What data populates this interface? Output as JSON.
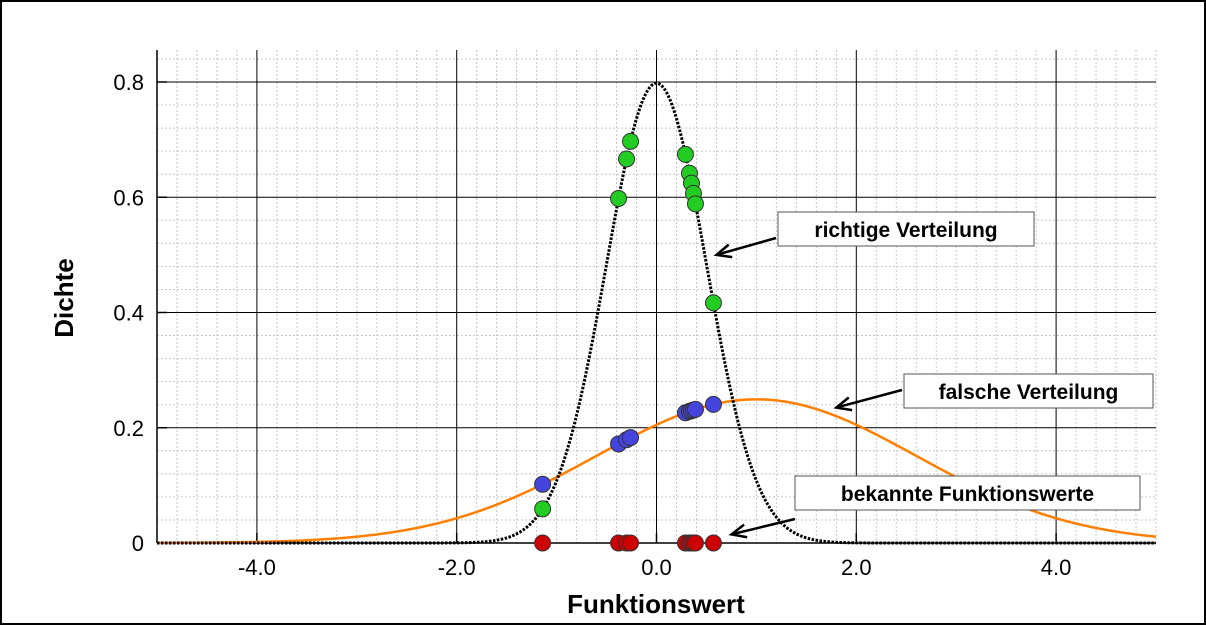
{
  "chart_data": {
    "type": "line",
    "title": "",
    "xlabel": "Funktionswert",
    "ylabel": "Dichte",
    "xlim": [
      -5,
      5
    ],
    "ylim": [
      0,
      0.8
    ],
    "x_ticks": [
      -4,
      -2,
      0,
      2,
      4
    ],
    "x_tick_labels": [
      "-4.0",
      "-2.0",
      "0.0",
      "2.0",
      "4.0"
    ],
    "y_ticks": [
      0,
      0.2,
      0.4,
      0.6,
      0.8
    ],
    "y_tick_labels": [
      "0",
      "0.2",
      "0.4",
      "0.6",
      "0.8"
    ],
    "grid": true,
    "series": [
      {
        "style": "dotted",
        "color": "#000000",
        "distribution": "normal",
        "mean": 0.0,
        "sd": 0.5
      },
      {
        "style": "solid",
        "color": "#ff7f00",
        "distribution": "normal",
        "mean": 1.0,
        "sd": 1.6
      }
    ],
    "points": {
      "x": [
        -1.14,
        -0.38,
        -0.3,
        -0.26,
        0.29,
        0.33,
        0.35,
        0.37,
        0.39,
        0.57
      ],
      "colors": {
        "correct": "#22cc22",
        "wrong": "#4444dd",
        "known": "#cc0000"
      }
    },
    "annotations": [
      {
        "text": "richtige Verteilung",
        "arrow_to": [
          0.6,
          0.5
        ]
      },
      {
        "text": "falsche Verteilung",
        "arrow_to": [
          1.8,
          0.235
        ]
      },
      {
        "text": "bekannte Funktionswerte",
        "arrow_to": [
          0.75,
          0.015
        ]
      }
    ]
  }
}
